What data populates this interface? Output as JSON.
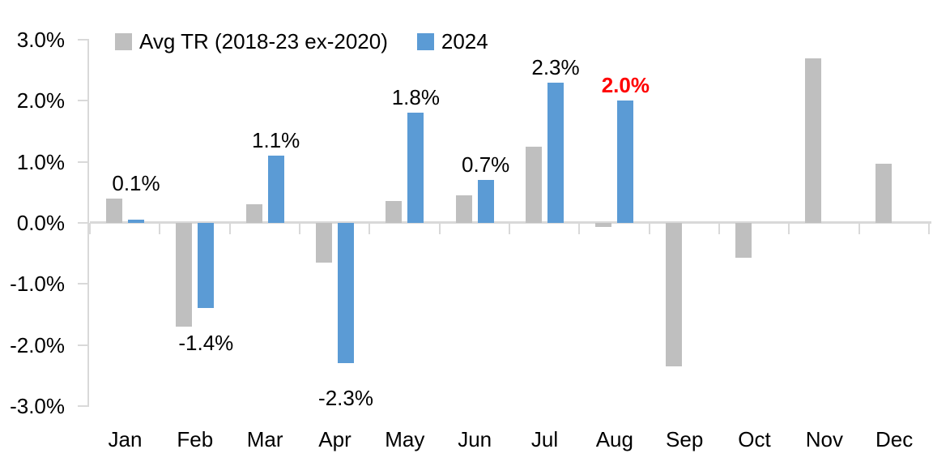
{
  "chart_data": {
    "type": "bar",
    "title": "",
    "xlabel": "",
    "ylabel": "",
    "categories": [
      "Jan",
      "Feb",
      "Mar",
      "Apr",
      "May",
      "Jun",
      "Jul",
      "Aug",
      "Sep",
      "Oct",
      "Nov",
      "Dec"
    ],
    "series": [
      {
        "name": "Avg TR (2018-23 ex-2020)",
        "color": "#BFBFBF",
        "values": [
          0.4,
          -1.7,
          0.31,
          -0.65,
          0.36,
          0.45,
          1.25,
          -0.06,
          -2.35,
          -0.57,
          2.7,
          0.97
        ]
      },
      {
        "name": "2024",
        "color": "#5B9BD5",
        "values": [
          0.05,
          -1.4,
          1.1,
          -2.3,
          1.8,
          0.7,
          2.3,
          2.0,
          null,
          null,
          null,
          null
        ]
      }
    ],
    "data_labels": [
      {
        "month_index": 0,
        "text": "0.1%",
        "position": "above",
        "color": "#000000",
        "bold": false
      },
      {
        "month_index": 1,
        "text": "-1.4%",
        "position": "below",
        "color": "#000000",
        "bold": false
      },
      {
        "month_index": 2,
        "text": "1.1%",
        "position": "above",
        "color": "#000000",
        "bold": false
      },
      {
        "month_index": 3,
        "text": "-2.3%",
        "position": "below",
        "color": "#000000",
        "bold": false
      },
      {
        "month_index": 4,
        "text": "1.8%",
        "position": "above",
        "color": "#000000",
        "bold": false
      },
      {
        "month_index": 5,
        "text": "0.7%",
        "position": "above",
        "color": "#000000",
        "bold": false
      },
      {
        "month_index": 6,
        "text": "2.3%",
        "position": "above",
        "color": "#000000",
        "bold": false
      },
      {
        "month_index": 7,
        "text": "2.0%",
        "position": "above",
        "color": "#FF0000",
        "bold": true
      }
    ],
    "y_axis": {
      "min": -3,
      "max": 3,
      "tick_labels": [
        "3.0%",
        "2.0%",
        "1.0%",
        "0.0%",
        "-1.0%",
        "-2.0%",
        "-3.0%"
      ],
      "tick_values": [
        3,
        2,
        1,
        0,
        -1,
        -2,
        -3
      ]
    },
    "legend_position": "top",
    "grid": false,
    "axis_color": "#D9D9D9",
    "highlight_color": "#FF0000",
    "background_color": "#FFFFFF"
  }
}
